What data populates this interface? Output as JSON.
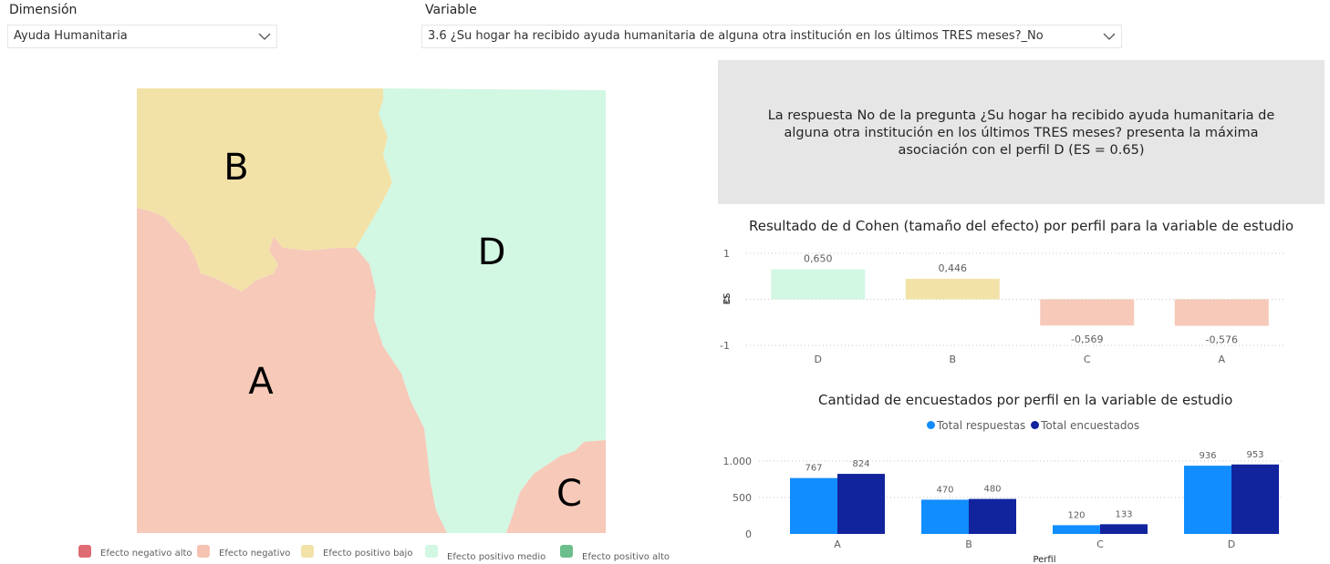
{
  "filters": {
    "dimension": {
      "label": "Dimensión",
      "value": "Ayuda Humanitaria"
    },
    "variable": {
      "label": "Variable",
      "value": "3.6 ¿Su hogar ha recibido ayuda humanitaria de alguna otra institución en los últimos TRES meses?_No"
    }
  },
  "summary": {
    "text": "La respuesta No de la pregunta ¿Su hogar ha recibido ayuda humanitaria de alguna otra institución en los últimos TRES meses? presenta la máxima asociación con el perfil D (ES = 0.65)"
  },
  "map": {
    "regions": [
      {
        "label": "A",
        "color": "#f6c9b9"
      },
      {
        "label": "B",
        "color": "#f2e2a8"
      },
      {
        "label": "C",
        "color": "#f6c9b9"
      },
      {
        "label": "D",
        "color": "#d2f7e3"
      }
    ],
    "legend": [
      {
        "label": "Efecto negativo alto",
        "color": "#e06c73"
      },
      {
        "label": "Efecto negativo",
        "color": "#f6c3b2"
      },
      {
        "label": "Efecto positivo bajo",
        "color": "#f2e2a8"
      },
      {
        "label": "Efecto positivo medio",
        "color": "#d2f7e3"
      },
      {
        "label": "Efecto positivo alto",
        "color": "#6cbf8c"
      }
    ]
  },
  "chart_data": [
    {
      "type": "bar",
      "title": "Resultado de d Cohen (tamaño del efecto) por perfil para la variable de estudio",
      "ylabel": "ES",
      "xlabel": "",
      "categories": [
        "D",
        "B",
        "C",
        "A"
      ],
      "values": [
        0.65,
        0.446,
        -0.569,
        -0.576
      ],
      "value_labels": [
        "0,650",
        "0,446",
        "-0,569",
        "-0,576"
      ],
      "colors": [
        "#d2f7e3",
        "#f2e2a8",
        "#f6c9b9",
        "#f6c9b9"
      ],
      "ylim": [
        -1,
        1
      ],
      "yticks": [
        1,
        0,
        -1
      ],
      "ytick_labels": [
        "1",
        "0",
        "-1"
      ],
      "grid": true
    },
    {
      "type": "bar",
      "title": "Cantidad de encuestados por perfil en la variable de estudio",
      "xlabel": "Perfil",
      "ylabel": "",
      "categories": [
        "A",
        "B",
        "C",
        "D"
      ],
      "series": [
        {
          "name": "Total respuestas",
          "color": "#118dff",
          "values": [
            767,
            470,
            120,
            936
          ]
        },
        {
          "name": "Total encuestados",
          "color": "#12239e",
          "values": [
            824,
            480,
            133,
            953
          ]
        }
      ],
      "ylim": [
        0,
        1000
      ],
      "yticks": [
        1000,
        500,
        0
      ],
      "ytick_labels": [
        "1.000",
        "500",
        "0"
      ],
      "legend": "top-center",
      "grid": true
    }
  ]
}
